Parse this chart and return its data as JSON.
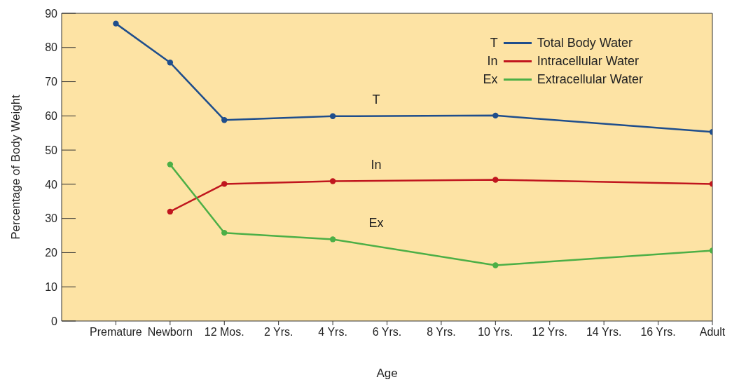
{
  "chart_data": {
    "type": "line",
    "xlabel": "Age",
    "ylabel": "Percentage of Body Weight",
    "categories": [
      "Premature",
      "Newborn",
      "12 Mos.",
      "2 Yrs.",
      "4 Yrs.",
      "6 Yrs.",
      "8 Yrs.",
      "10 Yrs.",
      "12 Yrs.",
      "14 Yrs.",
      "16 Yrs.",
      "Adult"
    ],
    "series": [
      {
        "name": "Total Body Water",
        "color": "#1f4e8c",
        "values": [
          87,
          75.6,
          58.8,
          null,
          59.9,
          null,
          null,
          60.1,
          null,
          null,
          null,
          55.3
        ]
      },
      {
        "name": "Intracellular Water",
        "color": "#c0161e",
        "values": [
          null,
          32,
          40.1,
          null,
          40.9,
          null,
          null,
          41.3,
          null,
          null,
          null,
          40.1
        ]
      },
      {
        "name": "Extracellular Water",
        "color": "#4caf46",
        "values": [
          null,
          45.8,
          25.8,
          null,
          23.9,
          null,
          null,
          16.3,
          null,
          null,
          null,
          20.6
        ]
      }
    ],
    "annotations": [
      "T",
      "In",
      "Ex"
    ],
    "ylim": [
      0,
      90
    ],
    "yticks": [
      0,
      10,
      20,
      30,
      40,
      50,
      60,
      70,
      80,
      90
    ],
    "grid": false,
    "legend": "top right",
    "marker": "circle",
    "line_style": "solid"
  }
}
